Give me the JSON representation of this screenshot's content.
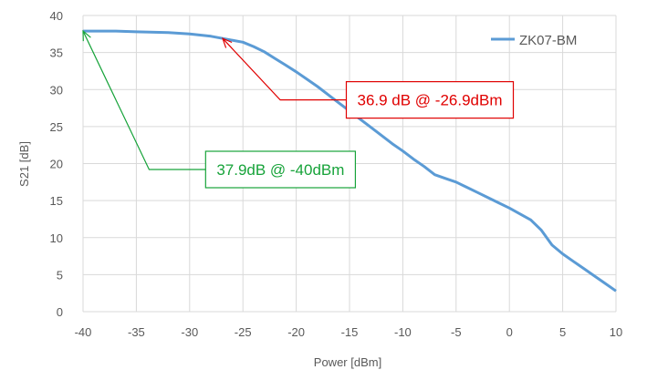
{
  "chart_data": {
    "type": "line",
    "title": "",
    "xlabel": "Power [dBm]",
    "ylabel": "S21 [dB]",
    "xlim": [
      -40,
      10
    ],
    "ylim": [
      0,
      40
    ],
    "xticks": [
      -40,
      -35,
      -30,
      -25,
      -20,
      -15,
      -10,
      -5,
      0,
      5,
      10
    ],
    "yticks": [
      0,
      5,
      10,
      15,
      20,
      25,
      30,
      35,
      40
    ],
    "grid": true,
    "legend_position": "top-right",
    "series": [
      {
        "name": "ZK07-BM",
        "color": "#5b9bd5",
        "x": [
          -40,
          -37,
          -35,
          -32,
          -30,
          -28,
          -26.9,
          -25,
          -24,
          -23,
          -22,
          -21,
          -20,
          -19,
          -18,
          -17,
          -16,
          -15,
          -14,
          -13,
          -12,
          -11,
          -10,
          -9,
          -8,
          -7,
          -6,
          -5,
          -4,
          -3,
          -2,
          -1,
          0,
          1,
          2,
          3,
          4,
          5,
          6,
          7,
          8,
          9,
          10
        ],
        "y": [
          37.9,
          37.9,
          37.8,
          37.7,
          37.5,
          37.2,
          36.9,
          36.4,
          35.8,
          35.1,
          34.2,
          33.3,
          32.4,
          31.4,
          30.4,
          29.3,
          28.2,
          27.1,
          26.0,
          24.9,
          23.8,
          22.7,
          21.7,
          20.6,
          19.6,
          18.5,
          18.0,
          17.5,
          16.8,
          16.1,
          15.4,
          14.7,
          14.0,
          13.2,
          12.4,
          11.0,
          9.0,
          7.8,
          6.8,
          5.8,
          4.8,
          3.8,
          2.8
        ]
      }
    ],
    "annotations": [
      {
        "text": "36.9 dB @ -26.9dBm",
        "color": "#e00000",
        "target": [
          -26.9,
          36.9
        ],
        "elbow": [
          -21.5,
          28.6
        ],
        "box_left_x": -15.3,
        "box_center_y": 28.6
      },
      {
        "text": "37.9dB @ -40dBm",
        "color": "#17a33a",
        "target": [
          -40,
          37.9
        ],
        "elbow": [
          -33.8,
          19.2
        ],
        "box_left_x": -28.5,
        "box_center_y": 19.2
      }
    ]
  }
}
